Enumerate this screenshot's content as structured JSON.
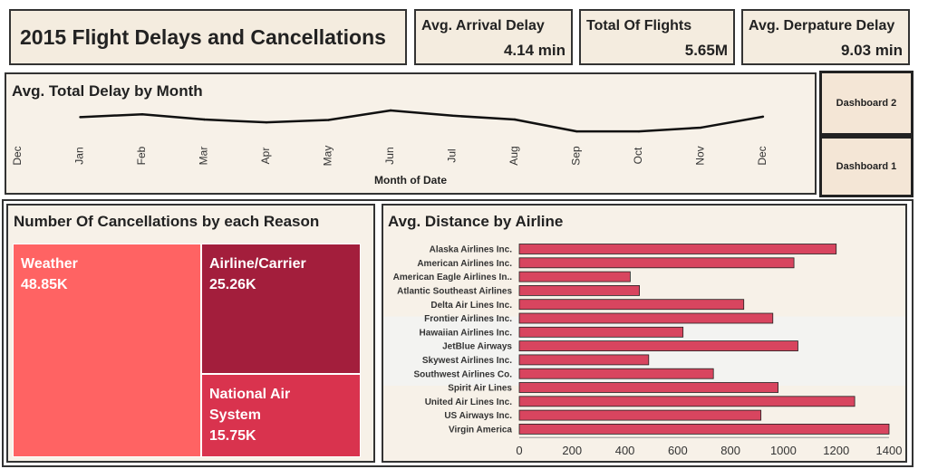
{
  "header": {
    "title": "2015 Flight Delays and Cancellations"
  },
  "kpis": [
    {
      "label": "Avg. Arrival Delay",
      "value": "4.14 min"
    },
    {
      "label": "Total Of Flights",
      "value": "5.65M"
    },
    {
      "label": "Avg. Derpature Delay",
      "value": "9.03 min"
    }
  ],
  "nav": {
    "dashboard2": "Dashboard 2",
    "dashboard1": "Dashboard 1"
  },
  "colors": {
    "line": "#111111",
    "bar": "#d8455f",
    "weather": "#ff6363",
    "airline": "#a31e3c",
    "nas": "#d9334e",
    "panel_bg": "#f7f1e8"
  },
  "line_panel": {
    "title": "Avg. Total Delay by Month",
    "xlabel": "Month of Date"
  },
  "treemap_panel": {
    "title": "Number Of Cancellations by each Reason"
  },
  "bar_panel": {
    "title": "Avg. Distance by Airline"
  },
  "chart_data": [
    {
      "type": "line",
      "title": "Avg. Total Delay by Month",
      "xlabel": "Month of Date",
      "ylabel": "",
      "tick_labels": [
        "Dec",
        "Jan",
        "Feb",
        "Mar",
        "Apr",
        "May",
        "Jun",
        "Jul",
        "Aug",
        "Sep",
        "Oct",
        "Nov",
        "Dec",
        "Jan"
      ],
      "x": [
        "Jan",
        "Feb",
        "Mar",
        "Apr",
        "May",
        "Jun",
        "Jul",
        "Aug",
        "Sep",
        "Oct",
        "Nov",
        "Dec"
      ],
      "values": [
        13.5,
        16.5,
        11.0,
        8.0,
        10.5,
        20.5,
        15.0,
        11.0,
        -1.5,
        -1.5,
        2.5,
        14.0
      ],
      "ylim": [
        -8,
        30
      ]
    },
    {
      "type": "treemap",
      "title": "Number Of Cancellations by each Reason",
      "items": [
        {
          "name": "Weather",
          "value": 48.85,
          "label": "48.85K"
        },
        {
          "name": "Airline/Carrier",
          "value": 25.26,
          "label": "25.26K"
        },
        {
          "name": "National Air System",
          "value": 15.75,
          "label": "15.75K"
        }
      ]
    },
    {
      "type": "bar",
      "orientation": "horizontal",
      "title": "Avg. Distance by Airline",
      "categories": [
        "Alaska Airlines Inc.",
        "American Airlines Inc.",
        "American Eagle Airlines In..",
        "Atlantic Southeast Airlines",
        "Delta Air Lines Inc.",
        "Frontier Airlines Inc.",
        "Hawaiian Airlines Inc.",
        "JetBlue Airways",
        "Skywest Airlines Inc.",
        "Southwest Airlines Co.",
        "Spirit Air Lines",
        "United Air Lines Inc.",
        "US Airways Inc.",
        "Virgin America"
      ],
      "values": [
        1200,
        1040,
        420,
        455,
        850,
        960,
        620,
        1055,
        490,
        735,
        980,
        1270,
        915,
        1400
      ],
      "xticks": [
        0,
        200,
        400,
        600,
        800,
        1000,
        1200,
        1400
      ],
      "xlim": [
        0,
        1400
      ]
    }
  ]
}
